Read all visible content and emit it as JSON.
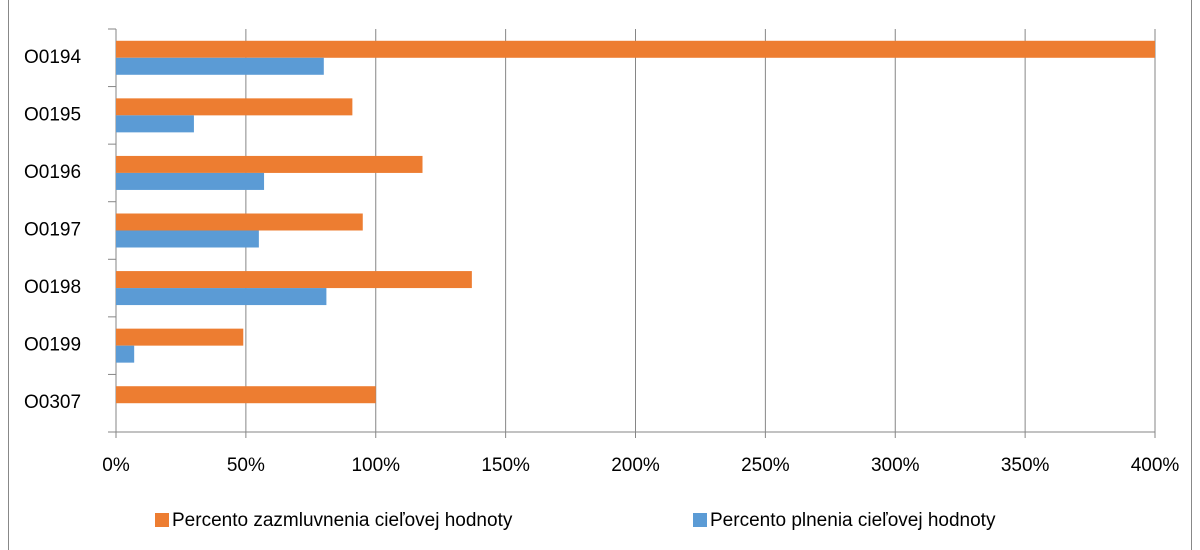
{
  "chart_data": {
    "type": "hbar",
    "categories": [
      "O0194",
      "O0195",
      "O0196",
      "O0197",
      "O0198",
      "O0199",
      "O0307"
    ],
    "series": [
      {
        "name": "Percento zazmluvnenia cieľovej hodnoty",
        "color": "#ed7d31",
        "values": [
          400,
          91,
          118,
          95,
          137,
          49,
          100
        ]
      },
      {
        "name": "Percento plnenia cieľovej hodnoty",
        "color": "#5b9bd5",
        "values": [
          80,
          30,
          57,
          55,
          81,
          7,
          0
        ]
      }
    ],
    "xlim": [
      0,
      400
    ],
    "xticks": [
      {
        "value": 0,
        "label": "0%"
      },
      {
        "value": 50,
        "label": "50%"
      },
      {
        "value": 100,
        "label": "100%"
      },
      {
        "value": 150,
        "label": "150%"
      },
      {
        "value": 200,
        "label": "200%"
      },
      {
        "value": 250,
        "label": "250%"
      },
      {
        "value": 300,
        "label": "300%"
      },
      {
        "value": 350,
        "label": "350%"
      },
      {
        "value": 400,
        "label": "400%"
      }
    ],
    "grid": true,
    "legend": "bottom"
  }
}
